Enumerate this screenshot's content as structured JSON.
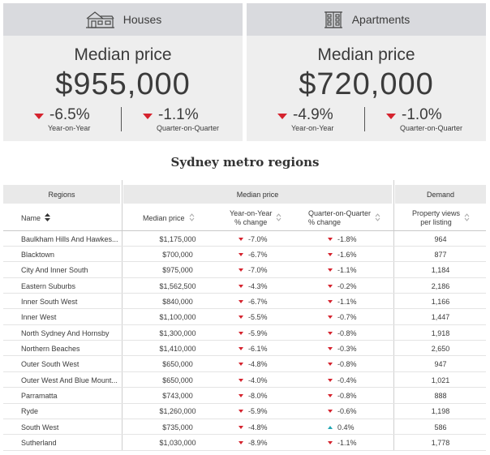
{
  "cards": [
    {
      "title": "Houses",
      "icon": "house-icon",
      "label": "Median price",
      "price": "$955,000",
      "yoy": {
        "value": "-6.5%",
        "label": "Year-on-Year",
        "direction": "down"
      },
      "qoq": {
        "value": "-1.1%",
        "label": "Quarter-on-Quarter",
        "direction": "down"
      }
    },
    {
      "title": "Apartments",
      "icon": "apartment-building-icon",
      "label": "Median price",
      "price": "$720,000",
      "yoy": {
        "value": "-4.9%",
        "label": "Year-on-Year",
        "direction": "down"
      },
      "qoq": {
        "value": "-1.0%",
        "label": "Quarter-on-Quarter",
        "direction": "down"
      }
    }
  ],
  "section_title": "Sydney metro regions",
  "table": {
    "groups": {
      "regions": "Regions",
      "median": "Median price",
      "demand": "Demand"
    },
    "columns": {
      "name": "Name",
      "price": "Median price",
      "yoy_1": "Year-on-Year",
      "yoy_2": "% change",
      "qoq_1": "Quarter-on-Quarter",
      "qoq_2": "% change",
      "demand_1": "Property views",
      "demand_2": "per listing"
    },
    "rows": [
      {
        "name": "Baulkham Hills And Hawkes...",
        "price": "$1,175,000",
        "yoy": "-7.0%",
        "yoy_dir": "down",
        "qoq": "-1.8%",
        "qoq_dir": "down",
        "demand": "964"
      },
      {
        "name": "Blacktown",
        "price": "$700,000",
        "yoy": "-6.7%",
        "yoy_dir": "down",
        "qoq": "-1.6%",
        "qoq_dir": "down",
        "demand": "877"
      },
      {
        "name": "City And Inner South",
        "price": "$975,000",
        "yoy": "-7.0%",
        "yoy_dir": "down",
        "qoq": "-1.1%",
        "qoq_dir": "down",
        "demand": "1,184"
      },
      {
        "name": "Eastern Suburbs",
        "price": "$1,562,500",
        "yoy": "-4.3%",
        "yoy_dir": "down",
        "qoq": "-0.2%",
        "qoq_dir": "down",
        "demand": "2,186"
      },
      {
        "name": "Inner South West",
        "price": "$840,000",
        "yoy": "-6.7%",
        "yoy_dir": "down",
        "qoq": "-1.1%",
        "qoq_dir": "down",
        "demand": "1,166"
      },
      {
        "name": "Inner West",
        "price": "$1,100,000",
        "yoy": "-5.5%",
        "yoy_dir": "down",
        "qoq": "-0.7%",
        "qoq_dir": "down",
        "demand": "1,447"
      },
      {
        "name": "North Sydney And Hornsby",
        "price": "$1,300,000",
        "yoy": "-5.9%",
        "yoy_dir": "down",
        "qoq": "-0.8%",
        "qoq_dir": "down",
        "demand": "1,918"
      },
      {
        "name": "Northern Beaches",
        "price": "$1,410,000",
        "yoy": "-6.1%",
        "yoy_dir": "down",
        "qoq": "-0.3%",
        "qoq_dir": "down",
        "demand": "2,650"
      },
      {
        "name": "Outer South West",
        "price": "$650,000",
        "yoy": "-4.8%",
        "yoy_dir": "down",
        "qoq": "-0.8%",
        "qoq_dir": "down",
        "demand": "947"
      },
      {
        "name": "Outer West And Blue Mount...",
        "price": "$650,000",
        "yoy": "-4.0%",
        "yoy_dir": "down",
        "qoq": "-0.4%",
        "qoq_dir": "down",
        "demand": "1,021"
      },
      {
        "name": "Parramatta",
        "price": "$743,000",
        "yoy": "-8.0%",
        "yoy_dir": "down",
        "qoq": "-0.8%",
        "qoq_dir": "down",
        "demand": "888"
      },
      {
        "name": "Ryde",
        "price": "$1,260,000",
        "yoy": "-5.9%",
        "yoy_dir": "down",
        "qoq": "-0.6%",
        "qoq_dir": "down",
        "demand": "1,198"
      },
      {
        "name": "South West",
        "price": "$735,000",
        "yoy": "-4.8%",
        "yoy_dir": "down",
        "qoq": "0.4%",
        "qoq_dir": "up",
        "demand": "586"
      },
      {
        "name": "Sutherland",
        "price": "$1,030,000",
        "yoy": "-8.9%",
        "yoy_dir": "down",
        "qoq": "-1.1%",
        "qoq_dir": "down",
        "demand": "1,778"
      }
    ]
  },
  "colors": {
    "down": "#d5232e",
    "up": "#22a7b4",
    "card_bg": "#eeeeee",
    "card_head_bg": "#d9dade",
    "group_head_bg": "#e9e9e9"
  }
}
